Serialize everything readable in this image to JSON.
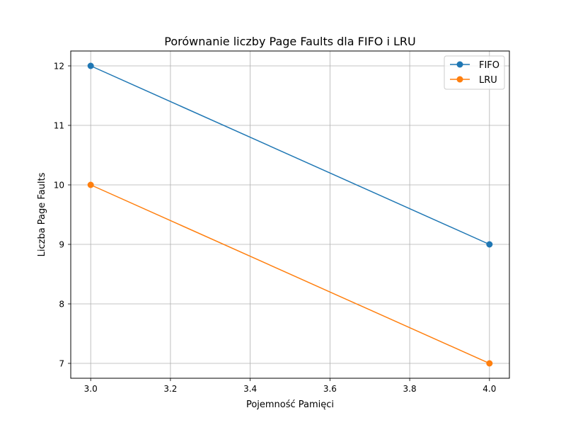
{
  "chart_data": {
    "type": "line",
    "title": "Porównanie liczby Page Faults dla FIFO i LRU",
    "xlabel": "Pojemność Pamięci",
    "ylabel": "Liczba Page Faults",
    "x": [
      3,
      4
    ],
    "xlim": [
      2.95,
      4.05
    ],
    "ylim": [
      6.75,
      12.25
    ],
    "xticks": [
      "3.0",
      "3.2",
      "3.4",
      "3.6",
      "3.8",
      "4.0"
    ],
    "xtick_values": [
      3.0,
      3.2,
      3.4,
      3.6,
      3.8,
      4.0
    ],
    "yticks": [
      "7",
      "8",
      "9",
      "10",
      "11",
      "12"
    ],
    "ytick_values": [
      7,
      8,
      9,
      10,
      11,
      12
    ],
    "grid": true,
    "legend_position": "top-right",
    "series": [
      {
        "name": "FIFO",
        "values": [
          12,
          9
        ],
        "color": "#1f77b4"
      },
      {
        "name": "LRU",
        "values": [
          10,
          7
        ],
        "color": "#ff7f0e"
      }
    ]
  }
}
